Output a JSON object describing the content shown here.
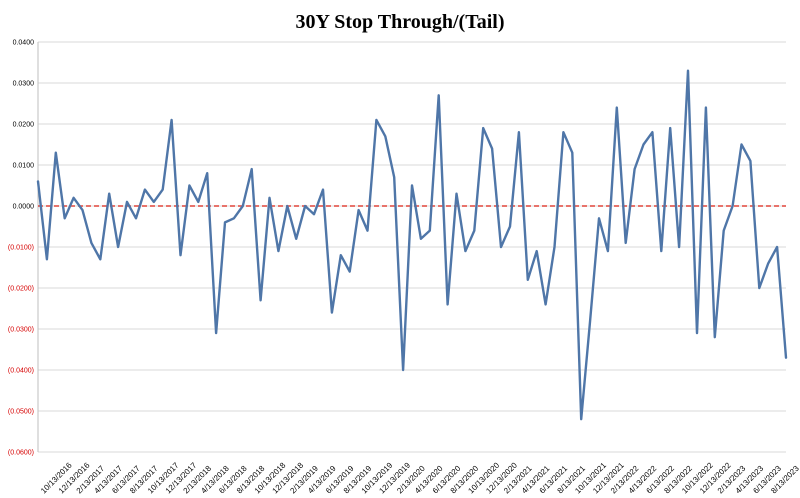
{
  "chart_data": {
    "type": "line",
    "title": "30Y Stop Through/(Tail)",
    "ylim": [
      -0.06,
      0.04
    ],
    "y_tick_values": [
      0.04,
      0.03,
      0.02,
      0.01,
      0.0,
      -0.01,
      -0.02,
      -0.03,
      -0.04,
      -0.05,
      -0.06
    ],
    "y_tick_labels": [
      "0.0400",
      "0.0300",
      "0.0200",
      "0.0100",
      "0.0000",
      "(0.0100)",
      "(0.0200)",
      "(0.0300)",
      "(0.0400)",
      "(0.0500)",
      "(0.0600)"
    ],
    "x_tick_labels": [
      "10/13/2016",
      "12/13/2016",
      "2/13/2017",
      "4/13/2017",
      "6/13/2017",
      "8/13/2017",
      "10/13/2017",
      "12/13/2017",
      "2/13/2018",
      "4/13/2018",
      "6/13/2018",
      "8/13/2018",
      "10/13/2018",
      "12/13/2018",
      "2/13/2019",
      "4/13/2019",
      "6/13/2019",
      "8/13/2019",
      "10/13/2019",
      "12/13/2019",
      "2/13/2020",
      "4/13/2020",
      "6/13/2020",
      "8/13/2020",
      "10/13/2020",
      "12/13/2020",
      "2/13/2021",
      "4/13/2021",
      "6/13/2021",
      "8/13/2021",
      "10/13/2021",
      "12/13/2021",
      "2/13/2022",
      "4/13/2022",
      "6/13/2022",
      "8/13/2022",
      "10/13/2022",
      "12/13/2022",
      "2/13/2023",
      "4/13/2023",
      "6/13/2023",
      "8/13/2023"
    ],
    "reference_line": {
      "y": 0.0,
      "color": "#e0453a",
      "style": "dashed"
    },
    "series": [
      {
        "name": "30Y Stop Through/(Tail)",
        "color": "#4f76a8",
        "values": [
          0.006,
          -0.013,
          0.013,
          -0.003,
          0.002,
          -0.001,
          -0.009,
          -0.013,
          0.003,
          -0.01,
          0.001,
          -0.003,
          0.004,
          0.001,
          0.004,
          0.021,
          -0.012,
          0.005,
          0.001,
          0.008,
          -0.031,
          -0.004,
          -0.003,
          0.0,
          0.009,
          -0.023,
          0.002,
          -0.011,
          0.0,
          -0.008,
          0.0,
          -0.002,
          0.004,
          -0.026,
          -0.012,
          -0.016,
          -0.001,
          -0.006,
          0.021,
          0.017,
          0.007,
          -0.04,
          0.005,
          -0.008,
          -0.006,
          0.027,
          -0.024,
          0.003,
          -0.011,
          -0.006,
          0.019,
          0.014,
          -0.01,
          -0.005,
          0.018,
          -0.018,
          -0.011,
          -0.024,
          -0.01,
          0.018,
          0.013,
          -0.052,
          -0.028,
          -0.003,
          -0.011,
          0.024,
          -0.009,
          0.009,
          0.015,
          0.018,
          -0.011,
          0.019,
          -0.01,
          0.033,
          -0.031,
          0.024,
          -0.032,
          -0.006,
          0.0,
          0.015,
          0.011,
          -0.02,
          -0.014,
          -0.01,
          -0.037
        ]
      }
    ]
  }
}
